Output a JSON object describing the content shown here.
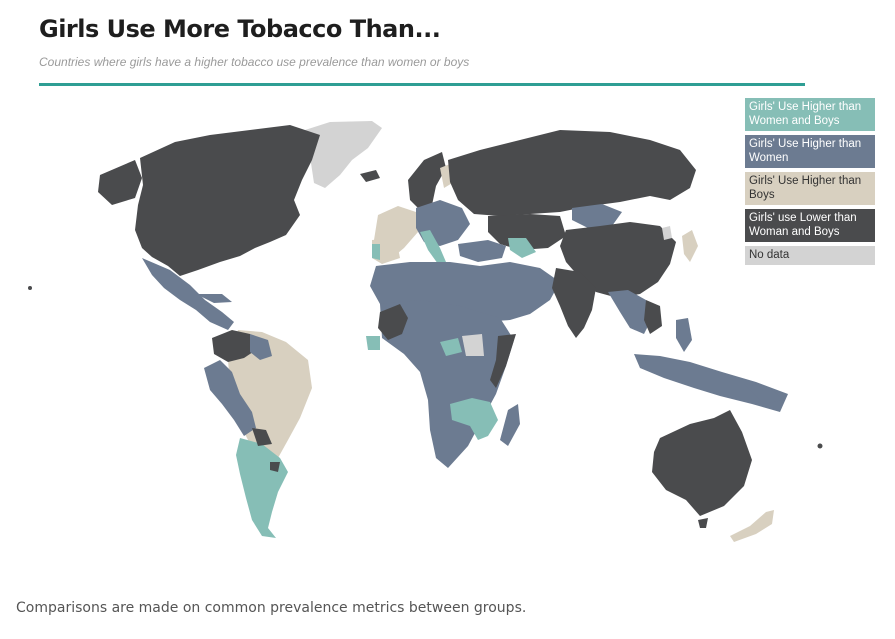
{
  "header": {
    "title": "Girls Use More Tobacco Than...",
    "subtitle": "Countries where girls have a higher tobacco use prevalence than women or boys"
  },
  "legend": {
    "items": [
      {
        "label": "Girls' Use Higher than Women and Boys",
        "color": "#86beb6"
      },
      {
        "label": "Girls' Use Higher than Women",
        "color": "#6c7b91"
      },
      {
        "label": "Girls' Use Higher than Boys",
        "color": "#d8d0c0"
      },
      {
        "label": "Girls' use Lower than Woman and Boys",
        "color": "#4a4b4d"
      },
      {
        "label": "No data",
        "color": "#d3d3d3"
      }
    ]
  },
  "map": {
    "colors": {
      "teal": "#86beb6",
      "blue": "#6c7b91",
      "beige": "#d8d0c0",
      "dark": "#4a4b4d",
      "nodata": "#d3d3d3",
      "accent": "#2f9e94"
    }
  },
  "footer": {
    "note": "Comparisons are made on common prevalence metrics between groups."
  }
}
